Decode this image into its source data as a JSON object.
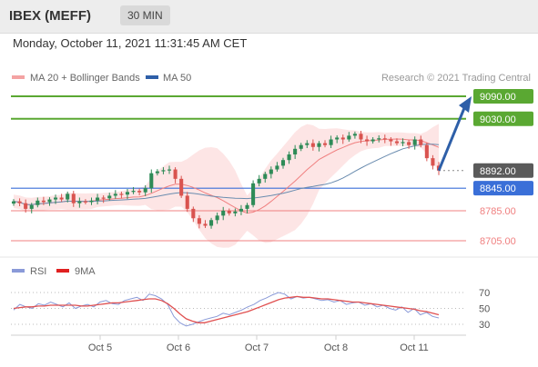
{
  "header": {
    "instrument": "IBEX (MEFF)",
    "timeframe": "30 MIN",
    "datetime": "Monday, October 11, 2021 11:31:45 AM CET"
  },
  "legend": {
    "ma20_bb": "MA 20 + Bollinger Bands",
    "ma50": "MA 50",
    "rsi": "RSI",
    "rsi_ma": "9MA",
    "copyright": "Research © 2021 Trading Central"
  },
  "colors": {
    "up_candle": "#2e8b57",
    "down_candle": "#d9534f",
    "ma20": "#f08080",
    "ma50": "#6a8caf",
    "band_fill": "#fde0e0",
    "resistance": "#5aa832",
    "pivot": "#3a6fd8",
    "support": "#f08080",
    "arrow": "#2e5fa8",
    "rsi": "#8a9ad8",
    "rsi_ma": "#e05050"
  },
  "chart_data": [
    {
      "type": "candlestick",
      "title": "",
      "x_ticks": [
        "Oct 5",
        "Oct 6",
        "Oct 7",
        "Oct 8",
        "Oct 11"
      ],
      "ylim": [
        8660,
        9105
      ],
      "last_price": 8892,
      "levels": [
        {
          "label": "9090.00",
          "value": 9090,
          "kind": "resistance"
        },
        {
          "label": "9030.00",
          "value": 9030,
          "kind": "resistance"
        },
        {
          "label": "8892.00",
          "value": 8892,
          "kind": "last"
        },
        {
          "label": "8845.00",
          "value": 8845,
          "kind": "pivot"
        },
        {
          "label": "8785.00",
          "value": 8785,
          "kind": "support"
        },
        {
          "label": "8705.00",
          "value": 8705,
          "kind": "support"
        }
      ],
      "close_path": [
        8810,
        8805,
        8790,
        8800,
        8812,
        8808,
        8815,
        8820,
        8815,
        8830,
        8805,
        8810,
        8808,
        8812,
        8820,
        8818,
        8825,
        8830,
        8828,
        8835,
        8838,
        8834,
        8845,
        8885,
        8890,
        8893,
        8895,
        8870,
        8825,
        8790,
        8765,
        8750,
        8745,
        8760,
        8772,
        8785,
        8778,
        8783,
        8790,
        8800,
        8858,
        8870,
        8883,
        8895,
        8905,
        8920,
        8935,
        8950,
        8960,
        8965,
        8955,
        8965,
        8960,
        8975,
        8980,
        8975,
        8985,
        8990,
        8975,
        8970,
        8975,
        8978,
        8975,
        8970,
        8965,
        8968,
        8960,
        8975,
        8960,
        8925,
        8905,
        8892
      ],
      "target_price": 9090
    },
    {
      "type": "line",
      "title": "",
      "ylim": [
        22,
        80
      ],
      "y_ticks": [
        70,
        50,
        30
      ],
      "levels": [
        70,
        50,
        30
      ],
      "series": [
        {
          "name": "RSI",
          "values": [
            48,
            55,
            52,
            50,
            56,
            54,
            58,
            55,
            52,
            57,
            50,
            53,
            55,
            52,
            58,
            60,
            56,
            55,
            60,
            62,
            64,
            60,
            68,
            66,
            62,
            55,
            40,
            32,
            28,
            30,
            33,
            36,
            38,
            40,
            44,
            42,
            45,
            48,
            52,
            55,
            60,
            63,
            67,
            70,
            68,
            62,
            65,
            63,
            64,
            62,
            60,
            61,
            58,
            60,
            55,
            57,
            58,
            54,
            56,
            52,
            54,
            50,
            48,
            52,
            45,
            50,
            42,
            45,
            40,
            38
          ]
        },
        {
          "name": "9MA",
          "values": [
            50,
            51,
            52,
            52,
            53,
            53,
            54,
            54,
            54,
            54,
            54,
            53,
            53,
            54,
            55,
            56,
            57,
            57,
            58,
            59,
            60,
            61,
            62,
            62,
            60,
            56,
            50,
            43,
            37,
            34,
            32,
            32,
            34,
            36,
            38,
            40,
            42,
            44,
            46,
            49,
            52,
            55,
            58,
            61,
            63,
            64,
            65,
            64,
            64,
            63,
            62,
            62,
            61,
            60,
            59,
            58,
            58,
            57,
            56,
            55,
            54,
            53,
            52,
            51,
            50,
            49,
            47,
            46,
            44,
            42
          ]
        }
      ]
    }
  ]
}
